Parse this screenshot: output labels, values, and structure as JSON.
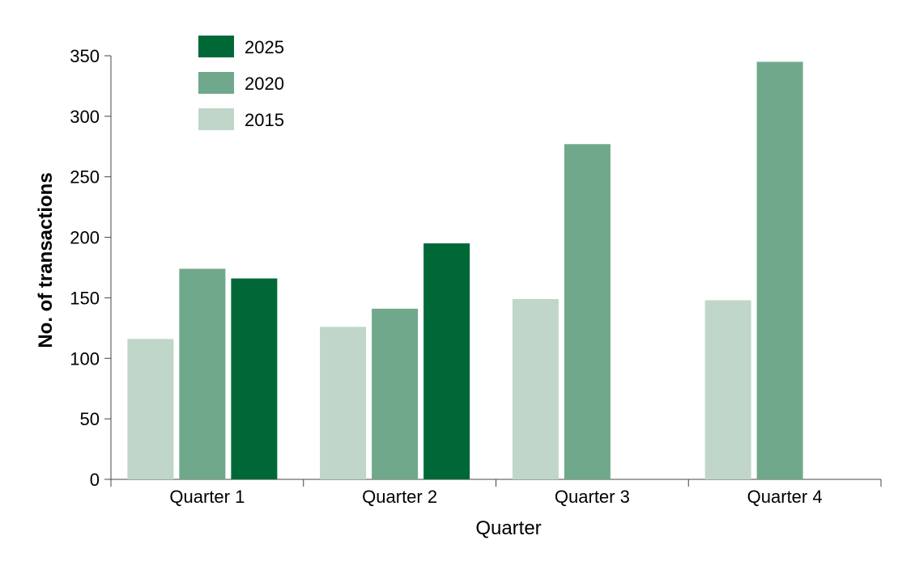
{
  "chart_data": {
    "type": "bar",
    "title": "",
    "xlabel": "Quarter",
    "ylabel": "No. of transactions",
    "categories": [
      "Quarter 1",
      "Quarter 2",
      "Quarter 3",
      "Quarter 4"
    ],
    "ylim": [
      0,
      350
    ],
    "yticks": [
      0,
      50,
      100,
      150,
      200,
      250,
      300,
      350
    ],
    "grid": false,
    "legend_position": "top-left",
    "series": [
      {
        "name": "2015",
        "color": "#bfd6c9",
        "values": [
          116,
          126,
          149,
          148
        ]
      },
      {
        "name": "2020",
        "color": "#70a88b",
        "values": [
          174,
          141,
          277,
          345
        ]
      },
      {
        "name": "2025",
        "color": "#006837",
        "values": [
          166,
          195,
          null,
          null
        ]
      }
    ],
    "legend_order": [
      "2025",
      "2020",
      "2015"
    ]
  }
}
